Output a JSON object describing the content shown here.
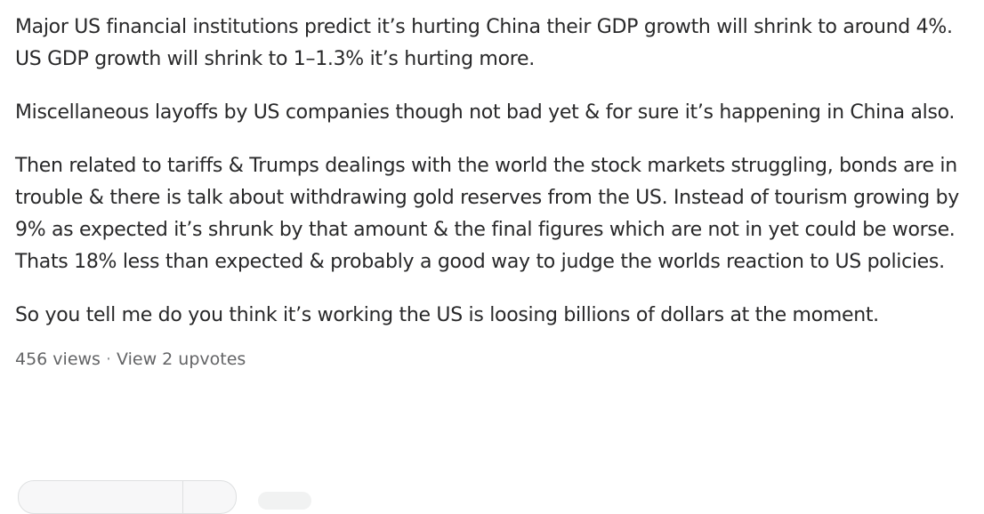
{
  "post": {
    "paragraphs": [
      "Major US financial institutions predict it’s hurting China their GDP growth will shrink to around 4%. US GDP growth will shrink to 1–1.3% it’s hurting more.",
      "Miscellaneous layoffs by US companies though not bad yet & for sure it’s happening in China also.",
      "Then related to tariffs & Trumps dealings with the world the stock markets struggling, bonds are in trouble & there is talk about withdrawing gold reserves from the US. Instead of tourism growing by 9% as expected it’s shrunk by that amount & the final figures which are not in yet could be worse. Thats 18% less than expected & probably a good way to judge the worlds reaction to US policies.",
      "So you tell me do you think it’s working the US is loosing billions of dollars at the moment."
    ],
    "meta": {
      "views": "456 views",
      "separator": "·",
      "upvotes_link": "View 2 upvotes"
    }
  }
}
